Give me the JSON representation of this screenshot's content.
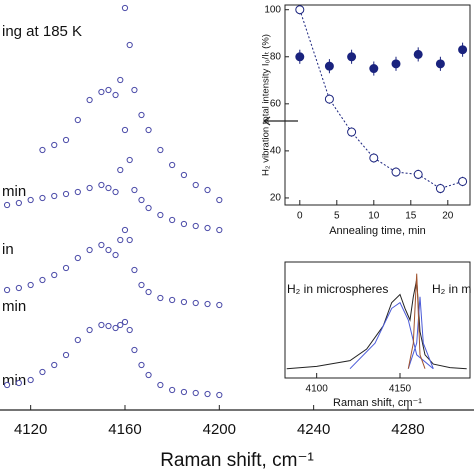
{
  "chart_data": [
    {
      "type": "scatter",
      "xlabel": "Raman shift, cm⁻¹",
      "annotations": [
        "ing at 185 K",
        "min",
        "in",
        "min",
        "min"
      ],
      "xlim": [
        4107,
        4308
      ],
      "ylim": [
        0,
        410
      ],
      "xticks": [
        4120,
        4160,
        4200,
        4240,
        4280
      ],
      "x": [
        4110,
        4115,
        4120,
        4125,
        4130,
        4135,
        4140,
        4145,
        4150,
        4153,
        4156,
        4158,
        4160,
        4162,
        4164,
        4167,
        4170,
        4175,
        4180,
        4185,
        4190,
        4195,
        4200
      ],
      "series": [
        {
          "color": "#4b4ba8",
          "marker": "open",
          "values": [
            null,
            null,
            null,
            260,
            265,
            270,
            290,
            310,
            318,
            320,
            315,
            330,
            402,
            365,
            320,
            295,
            280,
            260,
            245,
            235,
            225,
            220,
            210
          ]
        },
        {
          "color": "#4b4ba8",
          "marker": "open",
          "values": [
            205,
            207,
            210,
            212,
            214,
            216,
            218,
            222,
            225,
            222,
            218,
            240,
            280,
            250,
            220,
            210,
            202,
            195,
            190,
            186,
            184,
            182,
            180
          ]
        },
        {
          "color": "#4b4ba8",
          "marker": "open",
          "values": [
            120,
            122,
            125,
            130,
            135,
            142,
            152,
            160,
            165,
            160,
            155,
            170,
            180,
            170,
            140,
            125,
            118,
            112,
            110,
            108,
            107,
            106,
            105
          ]
        },
        {
          "color": "#4b4ba8",
          "marker": "open",
          "values": [
            25,
            27,
            30,
            38,
            45,
            55,
            70,
            80,
            85,
            84,
            82,
            85,
            88,
            80,
            60,
            45,
            35,
            25,
            20,
            18,
            17,
            16,
            15
          ]
        }
      ]
    },
    {
      "type": "scatter",
      "xlabel": "Annealing time, min",
      "ylabel": "H₂ vibration total intensity I₀/Iₜ (%)",
      "xlim": [
        -2,
        23
      ],
      "ylim": [
        17,
        102
      ],
      "xticks": [
        0,
        5,
        10,
        15,
        20
      ],
      "yticks": [
        20,
        40,
        60,
        80,
        100
      ],
      "x": [
        0,
        4,
        7,
        10,
        13,
        16,
        19,
        22
      ],
      "series": [
        {
          "color": "#1a237e",
          "marker": "filled",
          "values": [
            80,
            76,
            80,
            75,
            77,
            81,
            77,
            83
          ],
          "errors": [
            3,
            3,
            3,
            3,
            3,
            3,
            3,
            3
          ]
        },
        {
          "color": "#1a237e",
          "marker": "open",
          "fit": "dotted",
          "values": [
            100,
            62,
            48,
            37,
            31,
            30,
            24,
            27
          ],
          "errors": [
            2,
            2,
            2,
            2,
            2,
            2,
            2,
            2
          ]
        }
      ]
    },
    {
      "type": "line",
      "xlabel": "Raman shift, cm⁻¹",
      "annotations": [
        "H₂ in microspheres",
        "H₂ in m"
      ],
      "xlim": [
        4081,
        4192
      ],
      "ylim": [
        0,
        100
      ],
      "xticks": [
        4100,
        4150
      ],
      "series": [
        {
          "color": "#222222",
          "x": [
            4082,
            4100,
            4120,
            4130,
            4140,
            4145,
            4150,
            4153,
            4156,
            4158,
            4160,
            4162,
            4165,
            4170,
            4180,
            4190
          ],
          "values": [
            8,
            10,
            15,
            25,
            45,
            65,
            72,
            60,
            50,
            70,
            85,
            40,
            20,
            12,
            9,
            8
          ]
        },
        {
          "color": "#4a5ad8",
          "x": [
            4120,
            4135,
            4145,
            4150,
            4155,
            4160,
            4170
          ],
          "values": [
            8,
            30,
            60,
            65,
            50,
            20,
            8
          ]
        },
        {
          "color": "#4a5ad8",
          "x": [
            4155,
            4160,
            4162,
            4164,
            4170
          ],
          "values": [
            8,
            30,
            70,
            30,
            8
          ]
        },
        {
          "color": "#a0522d",
          "x": [
            4155,
            4158,
            4160,
            4162,
            4165
          ],
          "values": [
            8,
            30,
            90,
            20,
            8
          ]
        }
      ]
    }
  ]
}
